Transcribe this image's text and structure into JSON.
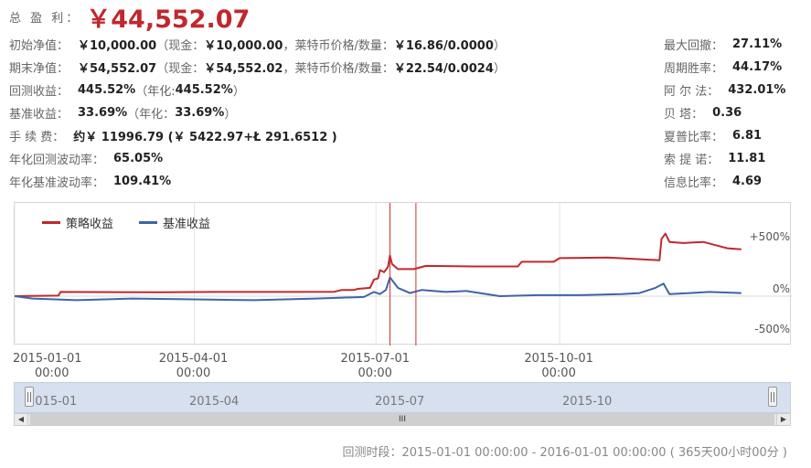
{
  "header": {
    "total_label": "总 盈 利：",
    "total_value": "￥44,552.07"
  },
  "left_stats": [
    {
      "label": "初始净值：",
      "value": "￥10,000.00",
      "extra": [
        {
          "t": "（现金：",
          "b": false
        },
        {
          "t": "￥10,000.00",
          "b": true
        },
        {
          "t": "，莱特币价格/数量：",
          "b": false
        },
        {
          "t": "￥16.86/0.0000",
          "b": true
        },
        {
          "t": "）",
          "b": false
        }
      ]
    },
    {
      "label": "期末净值：",
      "value": "￥54,552.07",
      "extra": [
        {
          "t": "（现金：",
          "b": false
        },
        {
          "t": "￥54,552.02",
          "b": true
        },
        {
          "t": "，莱特币价格/数量：",
          "b": false
        },
        {
          "t": "￥22.54/0.0024",
          "b": true
        },
        {
          "t": "）",
          "b": false
        }
      ]
    },
    {
      "label": "回测收益：",
      "value": "445.52%",
      "extra": [
        {
          "t": "（年化:",
          "b": false
        },
        {
          "t": "445.52%",
          "b": true
        },
        {
          "t": "）",
          "b": false
        }
      ]
    },
    {
      "label": "基准收益：",
      "value": "33.69%",
      "extra": [
        {
          "t": "（年化：",
          "b": false
        },
        {
          "t": "33.69%",
          "b": true
        },
        {
          "t": "）",
          "b": false
        }
      ]
    },
    {
      "label": "手 续 费：",
      "value": "约￥ 11996.79 (￥ 5422.97+Ł 291.6512 )",
      "extra": []
    },
    {
      "label": "年化回测波动率：",
      "value": "65.05%",
      "extra": []
    },
    {
      "label": "年化基准波动率：",
      "value": "109.41%",
      "extra": []
    }
  ],
  "right_stats": [
    {
      "label": "最大回撤：",
      "value": "27.11%"
    },
    {
      "label": "周期胜率：",
      "value": "44.17%"
    },
    {
      "label": "阿 尔 法：",
      "value": "432.01%"
    },
    {
      "label": "贝 塔：",
      "value": "0.36"
    },
    {
      "label": "夏普比率：",
      "value": "6.81"
    },
    {
      "label": "索 提 诺：",
      "value": "11.81"
    },
    {
      "label": "信息比率：",
      "value": "4.69"
    }
  ],
  "chart_data": {
    "type": "line",
    "title": "",
    "xlabel": "",
    "ylabel": "",
    "x_range": [
      "2015-01-01",
      "2016-01-01"
    ],
    "ylim": [
      -500,
      500
    ],
    "y_ticks": [
      "+500%",
      "0%",
      "-500%"
    ],
    "x_ticks": [
      {
        "date": "2015-01-01",
        "line1": "2015-01-01",
        "line2": "00:00"
      },
      {
        "date": "2015-04-01",
        "line1": "2015-04-01",
        "line2": "00:00"
      },
      {
        "date": "2015-07-01",
        "line1": "2015-07-01",
        "line2": "00:00"
      },
      {
        "date": "2015-10-01",
        "line1": "2015-10-01",
        "line2": "00:00"
      }
    ],
    "marker_dates": [
      "2015-07-08",
      "2015-07-21"
    ],
    "colors": {
      "strategy": "#c0282d",
      "benchmark": "#3f64a6",
      "marker": "#d03030"
    },
    "series": [
      {
        "name": "策略收益",
        "color": "#c0282d",
        "points": [
          [
            "2015-01-01",
            0
          ],
          [
            "2015-01-23",
            5
          ],
          [
            "2015-01-24",
            40
          ],
          [
            "2015-03-15",
            38
          ],
          [
            "2015-04-10",
            40
          ],
          [
            "2015-05-20",
            40
          ],
          [
            "2015-06-10",
            42
          ],
          [
            "2015-06-14",
            60
          ],
          [
            "2015-06-20",
            60
          ],
          [
            "2015-06-22",
            70
          ],
          [
            "2015-06-28",
            80
          ],
          [
            "2015-06-30",
            160
          ],
          [
            "2015-07-02",
            170
          ],
          [
            "2015-07-03",
            250
          ],
          [
            "2015-07-05",
            230
          ],
          [
            "2015-07-07",
            280
          ],
          [
            "2015-07-08",
            390
          ],
          [
            "2015-07-09",
            310
          ],
          [
            "2015-07-12",
            260
          ],
          [
            "2015-07-20",
            260
          ],
          [
            "2015-07-26",
            290
          ],
          [
            "2015-08-20",
            285
          ],
          [
            "2015-09-10",
            285
          ],
          [
            "2015-09-12",
            330
          ],
          [
            "2015-09-28",
            330
          ],
          [
            "2015-10-01",
            365
          ],
          [
            "2015-10-25",
            370
          ],
          [
            "2015-11-05",
            360
          ],
          [
            "2015-11-20",
            345
          ],
          [
            "2015-11-21",
            550
          ],
          [
            "2015-11-23",
            600
          ],
          [
            "2015-11-25",
            520
          ],
          [
            "2015-12-02",
            510
          ],
          [
            "2015-12-12",
            520
          ],
          [
            "2015-12-20",
            480
          ],
          [
            "2015-12-24",
            460
          ],
          [
            "2015-12-31",
            450
          ]
        ]
      },
      {
        "name": "基准收益",
        "color": "#3f64a6",
        "points": [
          [
            "2015-01-01",
            0
          ],
          [
            "2015-01-10",
            -30
          ],
          [
            "2015-02-01",
            -50
          ],
          [
            "2015-03-01",
            -30
          ],
          [
            "2015-04-01",
            -40
          ],
          [
            "2015-05-01",
            -50
          ],
          [
            "2015-06-01",
            -30
          ],
          [
            "2015-06-25",
            -10
          ],
          [
            "2015-06-30",
            40
          ],
          [
            "2015-07-03",
            20
          ],
          [
            "2015-07-06",
            60
          ],
          [
            "2015-07-08",
            180
          ],
          [
            "2015-07-12",
            80
          ],
          [
            "2015-07-18",
            30
          ],
          [
            "2015-07-24",
            60
          ],
          [
            "2015-08-05",
            40
          ],
          [
            "2015-08-15",
            50
          ],
          [
            "2015-09-01",
            0
          ],
          [
            "2015-09-20",
            10
          ],
          [
            "2015-10-10",
            10
          ],
          [
            "2015-11-01",
            20
          ],
          [
            "2015-11-10",
            30
          ],
          [
            "2015-11-18",
            80
          ],
          [
            "2015-11-22",
            120
          ],
          [
            "2015-11-25",
            20
          ],
          [
            "2015-12-05",
            30
          ],
          [
            "2015-12-15",
            40
          ],
          [
            "2015-12-31",
            30
          ]
        ]
      }
    ]
  },
  "navigator": {
    "labels": [
      "2015-01",
      "2015-04",
      "2015-07",
      "2015-10"
    ],
    "scroll_thumb": "III",
    "left_arrow": "◀",
    "right_arrow": "▶"
  },
  "footer": "回测时段：2015-01-01 00:00:00 - 2016-01-01 00:00:00 ( 365天00小时00分 )"
}
